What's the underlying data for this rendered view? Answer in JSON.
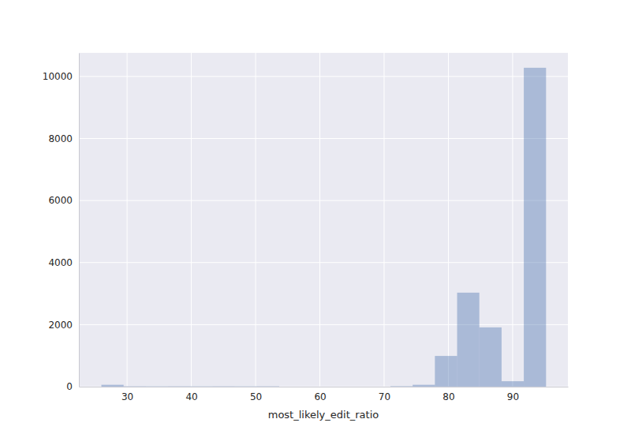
{
  "chart_data": {
    "type": "histogram",
    "xlabel": "most_likely_edit_ratio",
    "bins": [
      26,
      29.46,
      32.92,
      36.38,
      39.84,
      43.3,
      46.76,
      50.22,
      53.68,
      57.14,
      60.6,
      64.06,
      67.52,
      70.98,
      74.44,
      77.9,
      81.36,
      84.82,
      88.28,
      91.74,
      95.2
    ],
    "values": [
      60,
      12,
      10,
      12,
      10,
      12,
      10,
      12,
      0,
      0,
      0,
      0,
      0,
      15,
      60,
      990,
      3030,
      1910,
      175,
      10280
    ],
    "color": "#4c72b0",
    "xlim": [
      22.5,
      98.6
    ],
    "ylim": [
      0,
      10760
    ],
    "xticks": [
      30,
      40,
      50,
      60,
      70,
      80,
      90
    ],
    "yticks": [
      0,
      2000,
      4000,
      6000,
      8000,
      10000
    ],
    "grid": true
  }
}
